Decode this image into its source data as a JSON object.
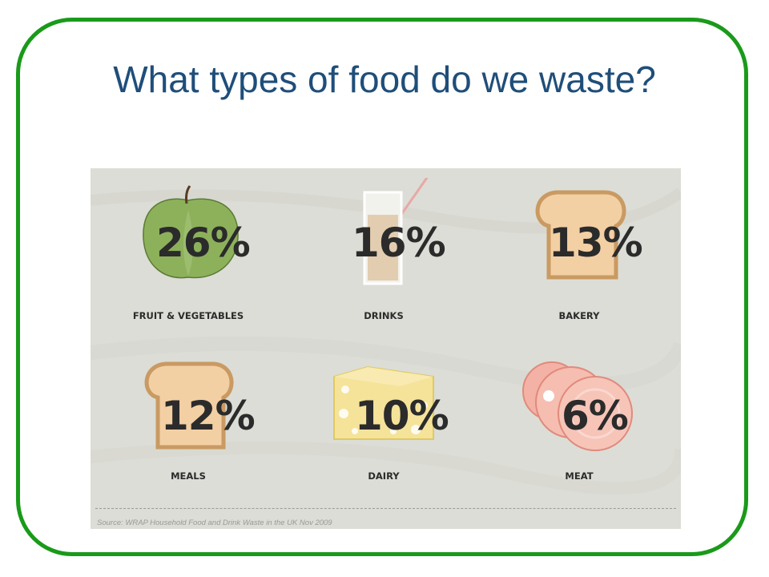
{
  "slide": {
    "title": "What types of food do we waste?",
    "border_color": "#1a9a1a",
    "title_color": "#1f4e79"
  },
  "infographic": {
    "items": [
      {
        "percent": "26%",
        "label": "FRUIT & VEGETABLES",
        "icon": "apple-icon"
      },
      {
        "percent": "16%",
        "label": "DRINKS",
        "icon": "glass-icon"
      },
      {
        "percent": "13%",
        "label": "BAKERY",
        "icon": "bread-icon"
      },
      {
        "percent": "12%",
        "label": "MEALS",
        "icon": "bread-icon"
      },
      {
        "percent": "10%",
        "label": "DAIRY",
        "icon": "cheese-icon"
      },
      {
        "percent": "6%",
        "label": "MEAT",
        "icon": "ham-slices-icon"
      }
    ],
    "source": "Source: WRAP Household Food and Drink Waste in the UK Nov 2009"
  }
}
